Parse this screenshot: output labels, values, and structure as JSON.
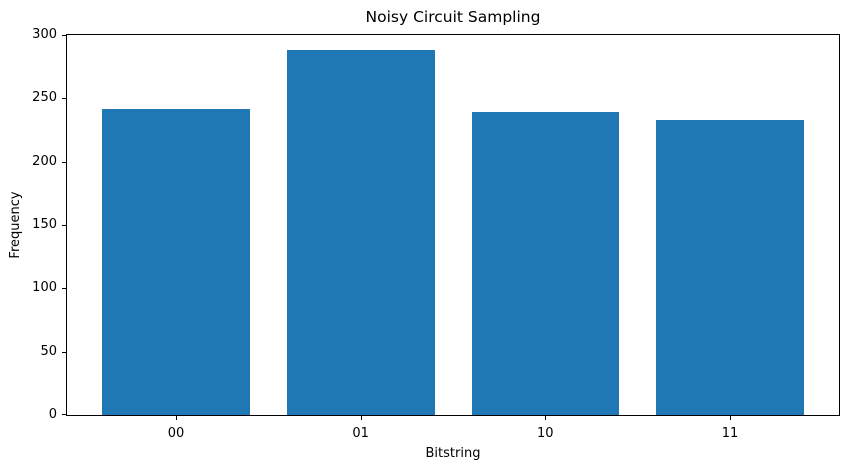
{
  "chart_data": {
    "type": "bar",
    "title": "Noisy Circuit Sampling",
    "xlabel": "Bitstring",
    "ylabel": "Frequency",
    "categories": [
      "00",
      "01",
      "10",
      "11"
    ],
    "values": [
      242,
      288,
      239,
      233
    ],
    "ylim": [
      0,
      300
    ],
    "yticks": [
      0,
      50,
      100,
      150,
      200,
      250,
      300
    ],
    "bar_color": "#1f77b4",
    "bar_rel_width": 0.8,
    "background": "#ffffff",
    "grid": false,
    "legend_position": "none"
  }
}
